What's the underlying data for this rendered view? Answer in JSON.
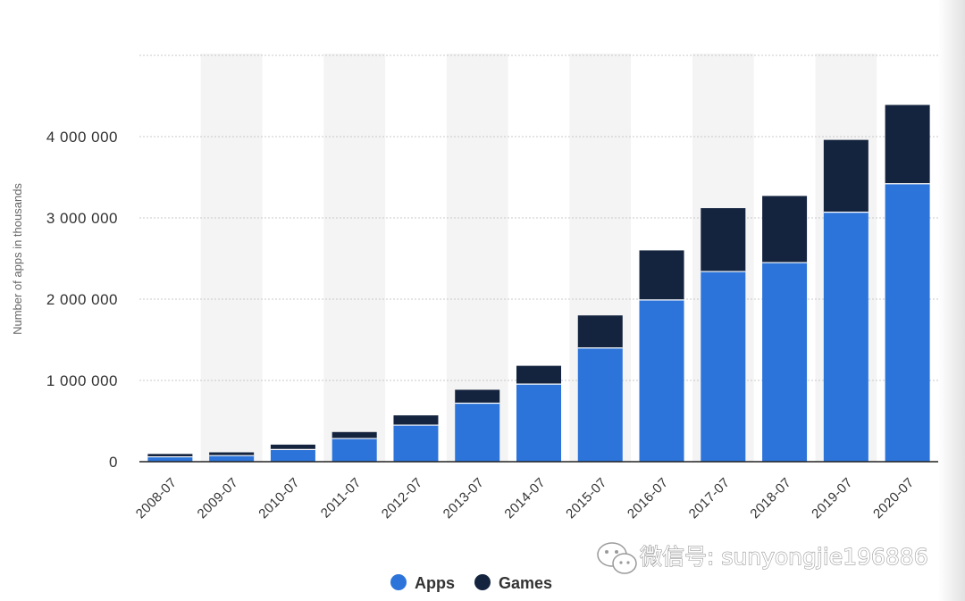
{
  "chart_data": {
    "type": "bar",
    "stacked": true,
    "categories": [
      "2008-07",
      "2009-07",
      "2010-07",
      "2011-07",
      "2012-07",
      "2013-07",
      "2014-07",
      "2015-07",
      "2016-07",
      "2017-07",
      "2018-07",
      "2019-07",
      "2020-07"
    ],
    "series": [
      {
        "name": "Apps",
        "color": "#2c74d9",
        "values": [
          60000,
          75000,
          150000,
          285000,
          450000,
          720000,
          955000,
          1400000,
          1990000,
          2340000,
          2450000,
          3070000,
          3420000
        ]
      },
      {
        "name": "Games",
        "color": "#14243f",
        "values": [
          35000,
          40000,
          60000,
          80000,
          120000,
          165000,
          225000,
          400000,
          610000,
          780000,
          820000,
          890000,
          970000
        ]
      }
    ],
    "yticks": [
      0,
      1000000,
      2000000,
      3000000,
      4000000
    ],
    "ytick_labels": [
      "0",
      "1 000 000",
      "2 000 000",
      "3 000 000",
      "4 000 000"
    ],
    "ylim": [
      0,
      5000000
    ],
    "ylabel": "Number of apps in thousands",
    "xlabel": "",
    "grid": true,
    "legend_position": "bottom-center"
  },
  "watermark": {
    "text": "微信号: sunyongjie196886",
    "icon": "wechat-icon"
  }
}
